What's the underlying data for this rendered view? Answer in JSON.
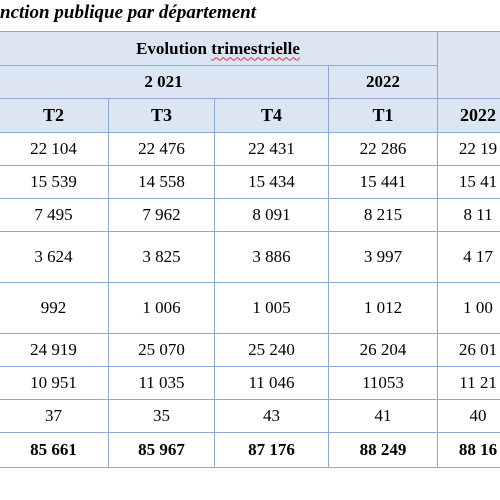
{
  "title": "nction publique par département",
  "header": {
    "group_label_word1": "Evolution",
    "group_label_word2": "trimestrielle",
    "year_2021": "2 021",
    "year_2022": "2022",
    "quarters": [
      "T2",
      "T3",
      "T4",
      "T1",
      "2022"
    ]
  },
  "rows": [
    [
      "22 104",
      "22 476",
      "22 431",
      "22 286",
      "22 19"
    ],
    [
      "15 539",
      "14 558",
      "15 434",
      "15 441",
      "15 41"
    ],
    [
      "7 495",
      "7 962",
      "8 091",
      "8 215",
      "8 11"
    ],
    [
      "3 624",
      "3 825",
      "3 886",
      "3 997",
      "4 17"
    ],
    [
      "992",
      "1 006",
      "1 005",
      "1 012",
      "1 00"
    ],
    [
      "24 919",
      "25 070",
      "25 240",
      "26 204",
      "26 01"
    ],
    [
      "10 951",
      "11 035",
      "11 046",
      "11053",
      "11 21"
    ],
    [
      "37",
      "35",
      "43",
      "41",
      "40"
    ],
    [
      "85 661",
      "85 967",
      "87 176",
      "88 249",
      "88 16"
    ]
  ]
}
